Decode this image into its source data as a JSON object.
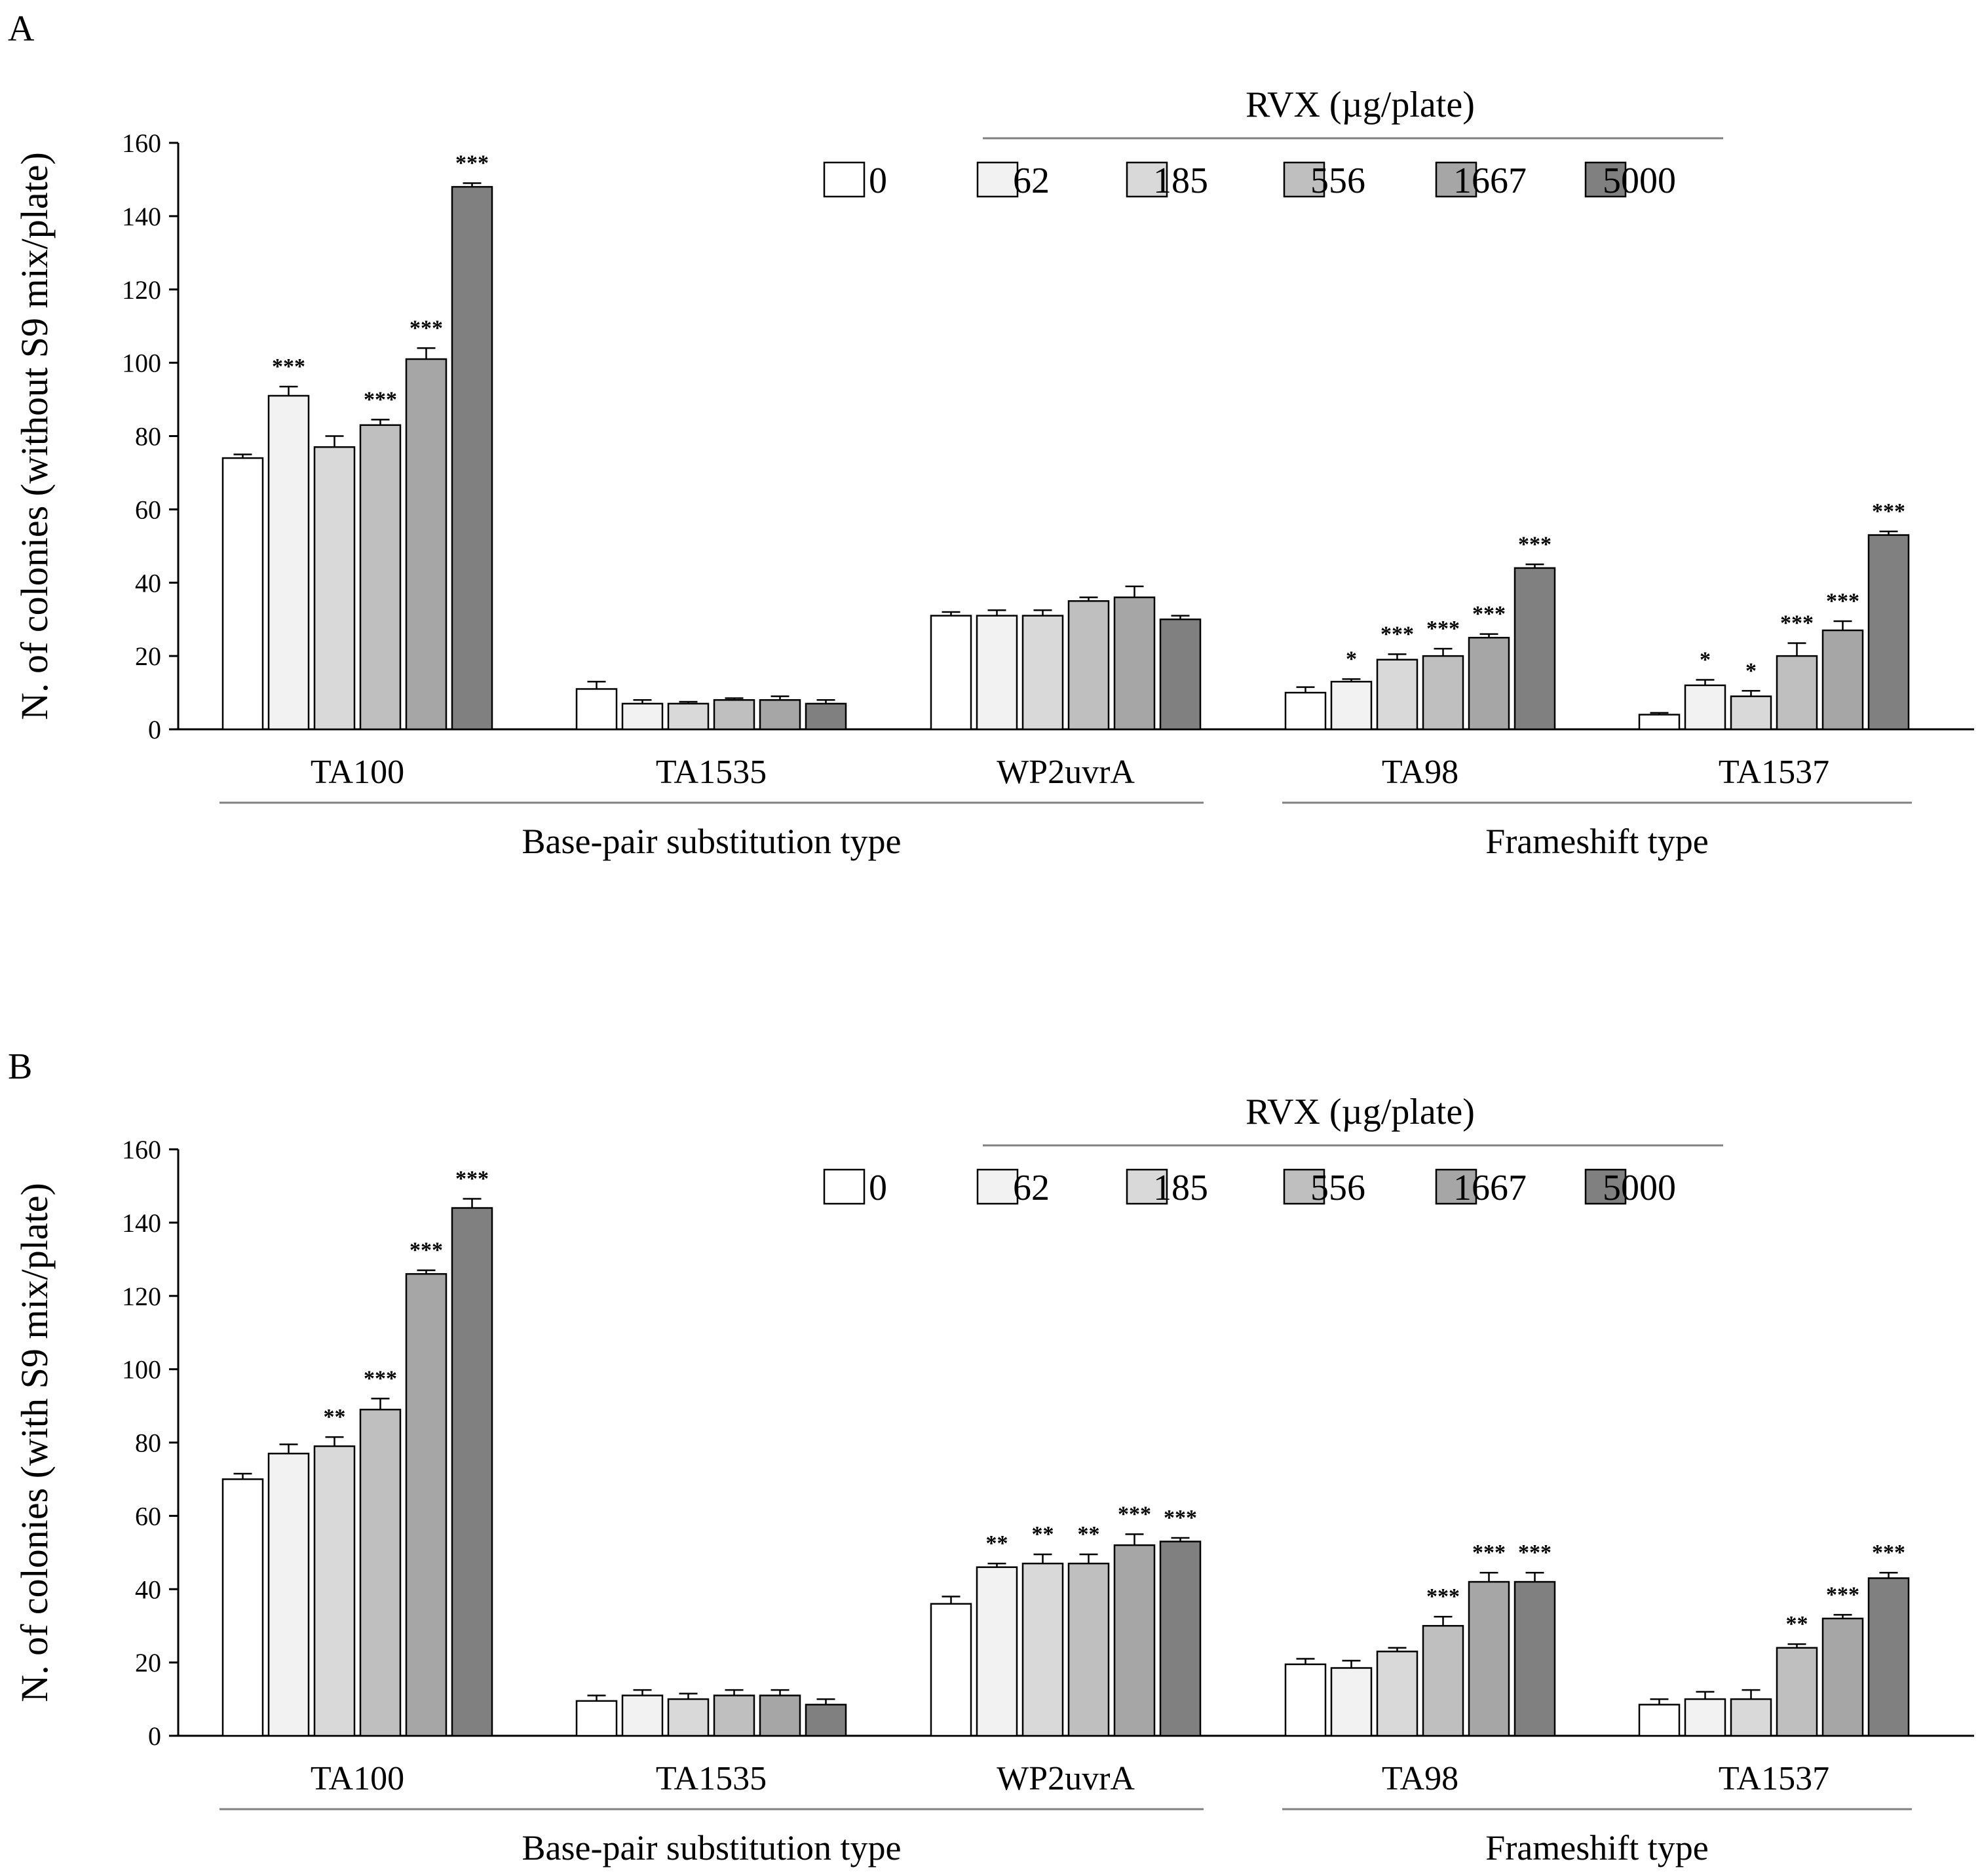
{
  "chart_data": [
    {
      "panel": "A",
      "type": "bar",
      "ylabel": "N. of colonies (without S9 mix/plate)",
      "ylim": [
        0,
        160
      ],
      "yticks": [
        "0",
        "20",
        "40",
        "60",
        "80",
        "100",
        "120",
        "140",
        "160"
      ],
      "legend_title": "RVX (µg/plate)",
      "categories": [
        "TA100",
        "TA1535",
        "WP2uvrA",
        "TA98",
        "TA1537"
      ],
      "groups": [
        {
          "label": "Base-pair substitution type",
          "from": 0,
          "to": 2
        },
        {
          "label": "Frameshift type",
          "from": 3,
          "to": 4
        }
      ],
      "series": [
        {
          "name": "0",
          "color": "#ffffff",
          "values": [
            74,
            11,
            31,
            10,
            4
          ],
          "errors": [
            1,
            2,
            1,
            1.5,
            0.5
          ],
          "sig": [
            "",
            "",
            "",
            "",
            ""
          ]
        },
        {
          "name": "62",
          "color": "#f2f2f2",
          "values": [
            91,
            7,
            31,
            13,
            12
          ],
          "errors": [
            2.5,
            1,
            1.5,
            0.7,
            1.5
          ],
          "sig": [
            "***",
            "",
            "",
            "*",
            "*"
          ]
        },
        {
          "name": "185",
          "color": "#d9d9d9",
          "values": [
            77,
            7,
            31,
            19,
            9
          ],
          "errors": [
            3,
            0.5,
            1.5,
            1.5,
            1.5
          ],
          "sig": [
            "",
            "",
            "",
            "***",
            "*"
          ]
        },
        {
          "name": "556",
          "color": "#bfbfbf",
          "values": [
            83,
            8,
            35,
            20,
            20
          ],
          "errors": [
            1.5,
            0.5,
            1,
            2,
            3.5
          ],
          "sig": [
            "***",
            "",
            "",
            "***",
            "***"
          ]
        },
        {
          "name": "1667",
          "color": "#a6a6a6",
          "values": [
            101,
            8,
            36,
            25,
            27
          ],
          "errors": [
            3,
            1,
            3,
            1,
            2.5
          ],
          "sig": [
            "***",
            "",
            "",
            "***",
            "***"
          ]
        },
        {
          "name": "5000",
          "color": "#808080",
          "values": [
            148,
            7,
            30,
            44,
            53
          ],
          "errors": [
            1,
            1,
            1,
            1,
            1
          ],
          "sig": [
            "***",
            "",
            "",
            "***",
            "***"
          ]
        }
      ]
    },
    {
      "panel": "B",
      "type": "bar",
      "ylabel": "N. of colonies (with S9 mix/plate)",
      "ylim": [
        0,
        160
      ],
      "yticks": [
        "0",
        "20",
        "40",
        "60",
        "80",
        "100",
        "120",
        "140",
        "160"
      ],
      "legend_title": "RVX (µg/plate)",
      "categories": [
        "TA100",
        "TA1535",
        "WP2uvrA",
        "TA98",
        "TA1537"
      ],
      "groups": [
        {
          "label": "Base-pair substitution type",
          "from": 0,
          "to": 2
        },
        {
          "label": "Frameshift type",
          "from": 3,
          "to": 4
        }
      ],
      "series": [
        {
          "name": "0",
          "color": "#ffffff",
          "values": [
            70,
            9.5,
            36,
            19.5,
            8.5
          ],
          "errors": [
            1.5,
            1.5,
            2,
            1.5,
            1.5
          ],
          "sig": [
            "",
            "",
            "",
            "",
            ""
          ]
        },
        {
          "name": "62",
          "color": "#f2f2f2",
          "values": [
            77,
            11,
            46,
            18.5,
            10
          ],
          "errors": [
            2.5,
            1.5,
            1,
            2,
            2
          ],
          "sig": [
            "",
            "",
            "**",
            "",
            ""
          ]
        },
        {
          "name": "185",
          "color": "#d9d9d9",
          "values": [
            79,
            10,
            47,
            23,
            10
          ],
          "errors": [
            2.5,
            1.5,
            2.5,
            1,
            2.5
          ],
          "sig": [
            "**",
            "",
            "**",
            "",
            ""
          ]
        },
        {
          "name": "556",
          "color": "#bfbfbf",
          "values": [
            89,
            11,
            47,
            30,
            24
          ],
          "errors": [
            3,
            1.5,
            2.5,
            2.5,
            1
          ],
          "sig": [
            "***",
            "",
            "**",
            "***",
            "**"
          ]
        },
        {
          "name": "1667",
          "color": "#a6a6a6",
          "values": [
            126,
            11,
            52,
            42,
            32
          ],
          "errors": [
            1,
            1.5,
            3,
            2.5,
            1
          ],
          "sig": [
            "***",
            "",
            "***",
            "***",
            "***"
          ]
        },
        {
          "name": "5000",
          "color": "#808080",
          "values": [
            144,
            8.5,
            53,
            42,
            43
          ],
          "errors": [
            2.5,
            1.5,
            1,
            2.5,
            1.5
          ],
          "sig": [
            "***",
            "",
            "***",
            "***",
            "***"
          ]
        }
      ]
    }
  ]
}
